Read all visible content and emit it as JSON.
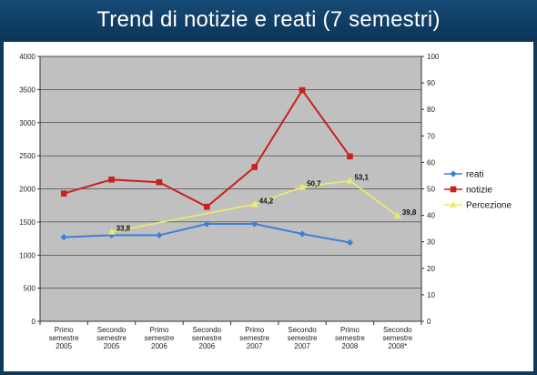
{
  "title": "Trend di notizie e reati (7 semestri)",
  "chart_data": {
    "type": "line",
    "title": "Trend di notizie e reati (7 semestri)",
    "categories": [
      [
        "Primo",
        "semestre",
        "2005"
      ],
      [
        "Secondo",
        "semestre",
        "2005"
      ],
      [
        "Primo",
        "semestre",
        "2006"
      ],
      [
        "Secondo",
        "semestre",
        "2006"
      ],
      [
        "Primo",
        "semestre",
        "2007"
      ],
      [
        "Secondo",
        "semestre",
        "2007"
      ],
      [
        "Primo",
        "semestre",
        "2008"
      ],
      [
        "Secondo",
        "semestre",
        "2008*"
      ]
    ],
    "y_left": {
      "min": 0,
      "max": 4000,
      "ticks": [
        0,
        500,
        1000,
        1500,
        2000,
        2500,
        3000,
        3500,
        4000
      ]
    },
    "y_right": {
      "min": 0,
      "max": 100,
      "ticks": [
        0,
        10,
        20,
        30,
        40,
        50,
        60,
        70,
        80,
        90,
        100
      ]
    },
    "grid": true,
    "legend_position": "right",
    "series": [
      {
        "name": "reati",
        "axis": "left",
        "color": "#3f7fd8",
        "marker": "diamond",
        "values": [
          1270,
          1300,
          1300,
          1470,
          1470,
          1320,
          1190,
          null
        ]
      },
      {
        "name": "notizie",
        "axis": "left",
        "color": "#cc1f1f",
        "marker": "square",
        "values": [
          1930,
          2140,
          2100,
          1730,
          2330,
          3490,
          2490,
          null
        ]
      },
      {
        "name": "Percezione",
        "axis": "right",
        "color": "#ecec6c",
        "marker": "triangle",
        "values": [
          null,
          33.8,
          null,
          null,
          44.2,
          50.7,
          53.1,
          39.8
        ],
        "labels": [
          null,
          "33,8",
          null,
          null,
          "44,2",
          "50,7",
          "53,1",
          "39,8"
        ]
      }
    ]
  }
}
